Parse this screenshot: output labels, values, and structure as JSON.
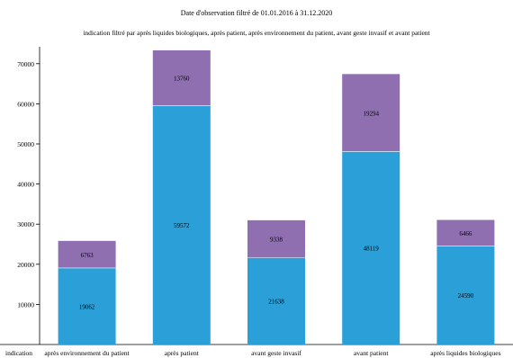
{
  "chart_data": {
    "type": "bar",
    "stacked": true,
    "title": "Date d'observation filtré de 01.01.2016 à 31.12.2020",
    "subtitle": "indication filtré par après liquides biologiques, après patient, après environnement du patient, avant geste invasif et avant patient",
    "xlabel": "indication",
    "categories": [
      "après environnement du patient",
      "après patient",
      "avant geste invasif",
      "avant patient",
      "après liquides biologiques"
    ],
    "series": [
      {
        "values": [
          19062,
          59572,
          21638,
          48119,
          24590
        ],
        "color": "#2a9fd8"
      },
      {
        "values": [
          6763,
          13760,
          9338,
          19294,
          6466
        ],
        "color": "#8f6fb0"
      }
    ],
    "yticks": [
      10000,
      20000,
      30000,
      40000,
      50000,
      60000,
      70000
    ],
    "ylim": [
      0,
      75000
    ],
    "grid": false,
    "legend": "none"
  }
}
